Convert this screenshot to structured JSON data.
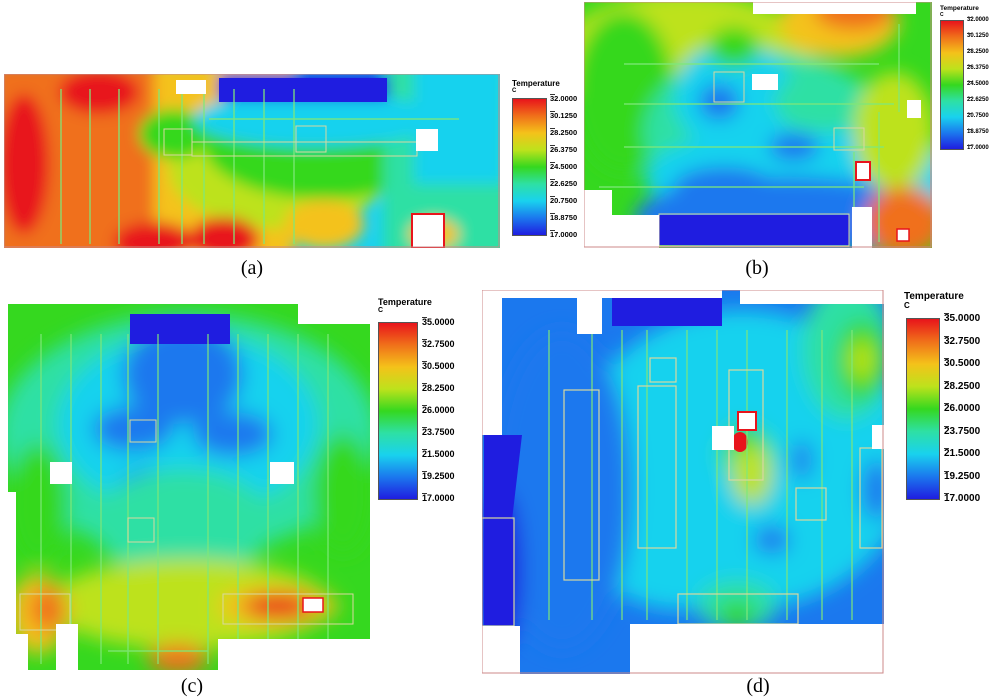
{
  "figure": {
    "panels": [
      {
        "caption": "(a)",
        "legend": {
          "title": "Temperature",
          "unit": "C",
          "ticks": [
            "32.0000",
            "30.1250",
            "28.2500",
            "26.3750",
            "24.5000",
            "22.6250",
            "20.7500",
            "18.8750",
            "17.0000"
          ]
        }
      },
      {
        "caption": "(b)",
        "legend": {
          "title": "Temperature",
          "unit": "C",
          "ticks": [
            "32.0000",
            "30.1250",
            "28.2500",
            "26.3750",
            "24.5000",
            "22.6250",
            "20.7500",
            "18.8750",
            "17.0000"
          ]
        }
      },
      {
        "caption": "(c)",
        "legend": {
          "title": "Temperature",
          "unit": "C",
          "ticks": [
            "35.0000",
            "32.7500",
            "30.5000",
            "28.2500",
            "26.0000",
            "23.7500",
            "21.5000",
            "19.2500",
            "17.0000"
          ]
        }
      },
      {
        "caption": "(d)",
        "legend": {
          "title": "Temperature",
          "unit": "C",
          "ticks": [
            "35.0000",
            "32.7500",
            "30.5000",
            "28.2500",
            "26.0000",
            "23.7500",
            "21.5000",
            "19.2500",
            "17.0000"
          ]
        }
      }
    ],
    "colormap": [
      "#e8141b",
      "#f0701a",
      "#f4c21a",
      "#bde21c",
      "#35d81f",
      "#2ee0a4",
      "#19d2ee",
      "#1b78ee",
      "#1f1de0"
    ]
  }
}
